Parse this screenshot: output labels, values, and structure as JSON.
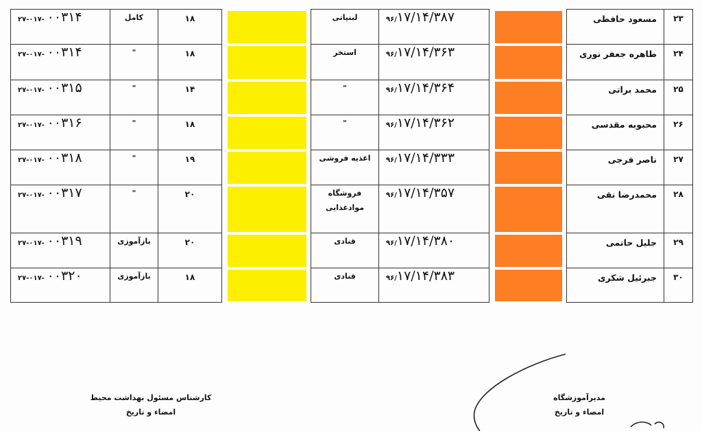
{
  "rows": [
    {
      "num": "۲۳",
      "name": "مسعود حافظی",
      "cert_prefix": "۹۶/",
      "cert": "۱۷/۱۴/۳۸۷",
      "job": "لبنیاتی",
      "job2": "",
      "score": "۱۸",
      "type": "کامل",
      "code_prefix": "۲۷-۰۱۷-",
      "code": "۰۰۳۱۴"
    },
    {
      "num": "۲۴",
      "name": "طاهره جعفر نوری",
      "cert_prefix": "۹۶/",
      "cert": "۱۷/۱۴/۳۶۳",
      "job": "استخر",
      "job2": "",
      "score": "۱۸",
      "type": "\"",
      "code_prefix": "۲۷-۰۱۷-",
      "code": "۰۰۳۱۴"
    },
    {
      "num": "۲۵",
      "name": "محمد براتی",
      "cert_prefix": "۹۶/",
      "cert": "۱۷/۱۴/۳۶۴",
      "job": "\"",
      "job2": "",
      "score": "۱۴",
      "type": "\"",
      "code_prefix": "۲۷-۰۱۷-",
      "code": "۰۰۳۱۵"
    },
    {
      "num": "۲۶",
      "name": "محبوبه مقدسی",
      "cert_prefix": "۹۶/",
      "cert": "۱۷/۱۴/۳۶۲",
      "job": "\"",
      "job2": "",
      "score": "۱۸",
      "type": "\"",
      "code_prefix": "۲۷-۰۱۷-",
      "code": "۰۰۳۱۶"
    },
    {
      "num": "۲۷",
      "name": "ناصر فرجی",
      "cert_prefix": "۹۶/",
      "cert": "۱۷/۱۴/۳۳۳",
      "job": "اغذیه فروشی",
      "job2": "",
      "score": "۱۹",
      "type": "\"",
      "code_prefix": "۲۷-۰۱۷-",
      "code": "۰۰۳۱۸"
    },
    {
      "num": "۲۸",
      "name": "محمدرضا نقی",
      "cert_prefix": "۹۶/",
      "cert": "۱۷/۱۴/۳۵۷",
      "job": "فروشگاه",
      "job2": "موادغذایی",
      "score": "۲۰",
      "type": "\"",
      "code_prefix": "۲۷-۰۱۷-",
      "code": "۰۰۳۱۷"
    },
    {
      "num": "۲۹",
      "name": "جلیل حاتمی",
      "cert_prefix": "۹۶/",
      "cert": "۱۷/۱۴/۳۸۰",
      "job": "قنادی",
      "job2": "",
      "score": "۲۰",
      "type": "بازآموزی",
      "code_prefix": "۲۷-۰۱۷-",
      "code": "۰۰۳۱۹"
    },
    {
      "num": "۳۰",
      "name": "جبرئیل شکری",
      "cert_prefix": "۹۶/",
      "cert": "۱۷/۱۴/۳۸۳",
      "job": "قنادی",
      "job2": "",
      "score": "۱۸",
      "type": "بازآموزی",
      "code_prefix": "۲۷-۰۱۷-",
      "code": "۰۰۳۲۰"
    }
  ],
  "redaction_colors": {
    "yellow": "#fdef00",
    "orange": "#fd7e23"
  },
  "footer": {
    "left_title": "کارشناس مسئول بهداشت محیط",
    "left_sub": "امضاء و تاریخ",
    "right_title": "مدیرآموزشگاه",
    "right_sub": "امضاء و تاریخ"
  }
}
